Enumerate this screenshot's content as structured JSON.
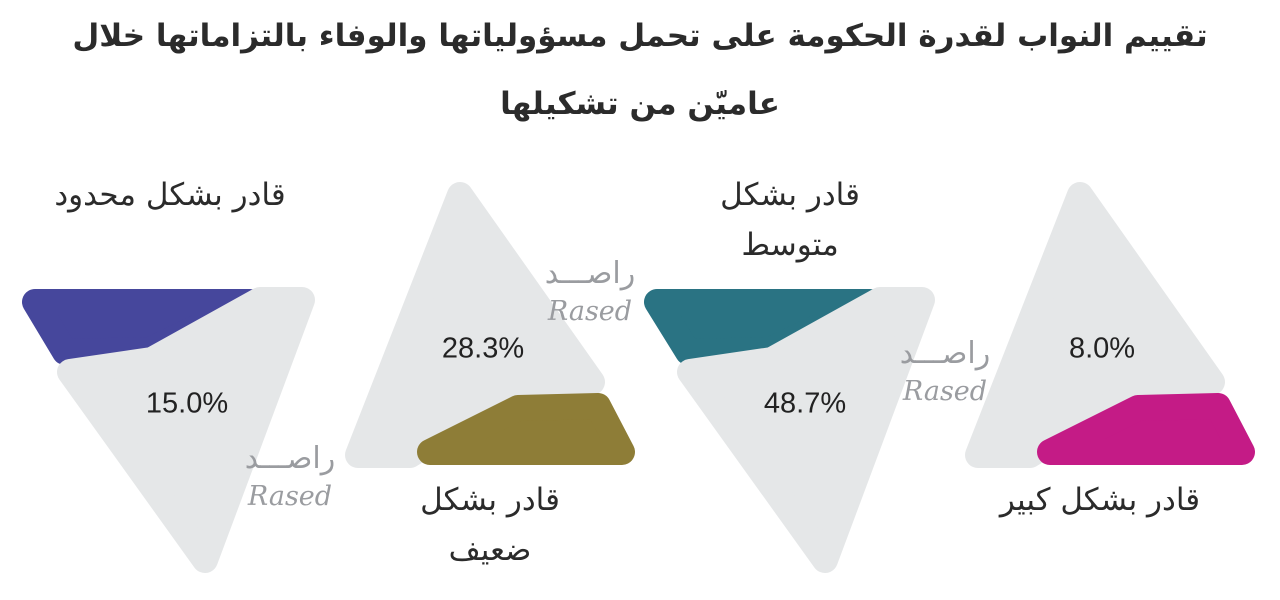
{
  "title_lines": [
    "تقييم النواب لقدرة الحكومة على تحمل مسؤولياتها والوفاء بالتزاماتها خلال",
    "عاميّن من تشكيلها"
  ],
  "chart_data": {
    "type": "pie",
    "title": "تقييم النواب لقدرة الحكومة على تحمل مسؤولياتها والوفاء بالتزاماتها خلال عاميّن من تشكيلها",
    "categories": [
      "قادر بشكل محدود",
      "قادر بشكل ضعيف",
      "قادر بشكل متوسط",
      "قادر بشكل كبير"
    ],
    "values": [
      15.0,
      28.3,
      48.7,
      8.0
    ],
    "value_labels": [
      "15.0%",
      "28.3%",
      "48.7%",
      "8.0%"
    ],
    "colors": [
      "#46479c",
      "#8e7d37",
      "#2a7383",
      "#c41b86"
    ],
    "base_color": "#e5e7e8"
  },
  "watermark": {
    "arabic": "راصـــد",
    "latin": "Rased"
  }
}
